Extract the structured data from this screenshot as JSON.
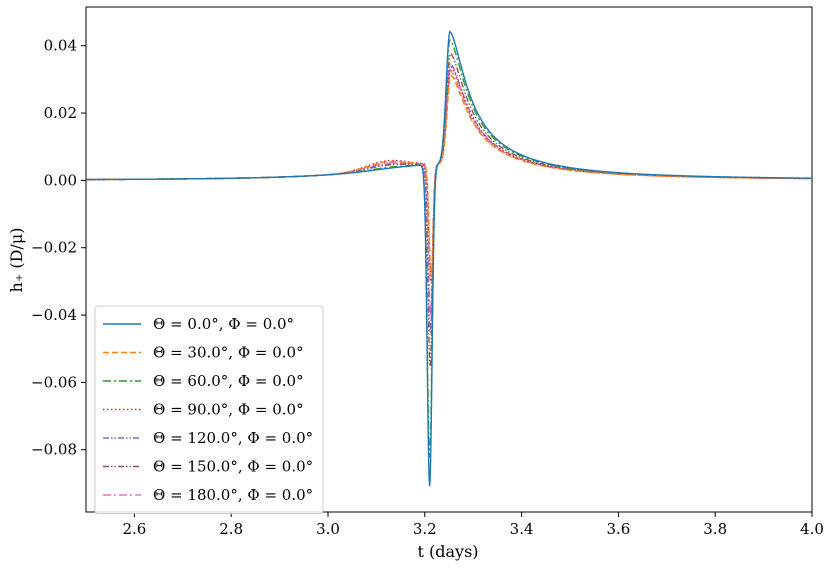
{
  "chart_data": {
    "type": "line",
    "xlabel": "t (days)",
    "ylabel": "h₊ (D/μ)",
    "xlim": [
      2.5,
      4.0
    ],
    "ylim": [
      -0.0985,
      0.0515
    ],
    "xticks": [
      2.6,
      2.8,
      3.0,
      3.2,
      3.4,
      3.6,
      3.8,
      4.0
    ],
    "xtick_labels": [
      "2.6",
      "2.8",
      "3.0",
      "3.2",
      "3.4",
      "3.6",
      "3.8",
      "4.0"
    ],
    "yticks": [
      0.04,
      0.02,
      0.0,
      -0.02,
      -0.04,
      -0.06,
      -0.08
    ],
    "ytick_labels": [
      "0.04",
      "0.02",
      "0.00",
      "−0.02",
      "−0.04",
      "−0.06",
      "−0.08"
    ],
    "grid": false,
    "legend_position": "lower-left",
    "series": [
      {
        "name": "Θ = 0.0°,  Φ = 0.0°",
        "color": "#1f77b4",
        "dash": "solid",
        "min": -0.0905,
        "max": 0.0445,
        "pre": 0.0052,
        "tmin": 3.21,
        "tmax": 3.252,
        "w": 0.007
      },
      {
        "name": "Θ = 30.0°,  Φ = 0.0°",
        "color": "#ff7f0e",
        "dash": "dashed",
        "min": -0.0285,
        "max": 0.0315,
        "pre": 0.0072,
        "tmin": 3.213,
        "tmax": 3.254,
        "w": 0.006
      },
      {
        "name": "Θ = 60.0°,  Φ = 0.0°",
        "color": "#2ca02c",
        "dash": "dashdot",
        "min": -0.082,
        "max": 0.042,
        "pre": 0.0055,
        "tmin": 3.21,
        "tmax": 3.252,
        "w": 0.007
      },
      {
        "name": "Θ = 90.0°,  Φ = 0.0°",
        "color": "#d62728",
        "dash": "dotted",
        "min": -0.03,
        "max": 0.034,
        "pre": 0.0075,
        "tmin": 3.213,
        "tmax": 3.254,
        "w": 0.006
      },
      {
        "name": "Θ = 120.0°,  Φ = 0.0°",
        "color": "#9467bd",
        "dash": "dashdotdot",
        "min": -0.045,
        "max": 0.035,
        "pre": 0.0065,
        "tmin": 3.211,
        "tmax": 3.253,
        "w": 0.0062
      },
      {
        "name": "Θ = 150.0°,  Φ = 0.0°",
        "color": "#8c564b",
        "dash": "dashdotdot",
        "min": -0.055,
        "max": 0.038,
        "pre": 0.0062,
        "tmin": 3.211,
        "tmax": 3.253,
        "w": 0.0064
      },
      {
        "name": "Θ = 180.0°,  Φ = 0.0°",
        "color": "#e377c2",
        "dash": "dashdot",
        "min": -0.04,
        "max": 0.033,
        "pre": 0.0068,
        "tmin": 3.212,
        "tmax": 3.253,
        "w": 0.006
      }
    ]
  }
}
